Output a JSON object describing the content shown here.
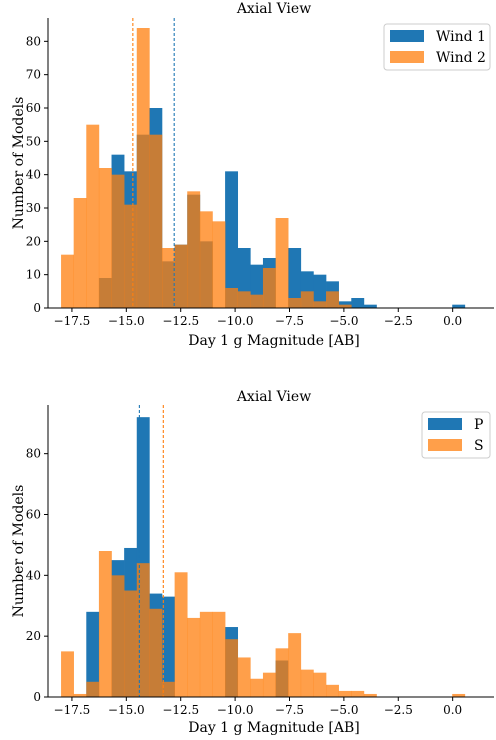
{
  "colors": {
    "series_a": "#1f77b4",
    "series_b": "#ff7f0e"
  },
  "chart_data": [
    {
      "type": "histogram",
      "title": "Axial View",
      "xlabel": "Day 1 g Magnitude [AB]",
      "ylabel": "Number of Models",
      "xlim": [
        -18.6,
        1.9
      ],
      "ylim": [
        0,
        87
      ],
      "xticks": [
        "−17.5",
        "−15.0",
        "−12.5",
        "−10.0",
        "−7.5",
        "−5.0",
        "−2.5",
        "0.0"
      ],
      "xtick_values": [
        -17.5,
        -15.0,
        -12.5,
        -10.0,
        -7.5,
        -5.0,
        -2.5,
        0.0
      ],
      "yticks": [
        "0",
        "10",
        "20",
        "30",
        "40",
        "50",
        "60",
        "70",
        "80"
      ],
      "ytick_values": [
        0,
        10,
        20,
        30,
        40,
        50,
        60,
        70,
        80
      ],
      "legend_position": "top-right",
      "bin_start": -18.0,
      "bin_width": 0.58,
      "series": [
        {
          "name": "Wind 1",
          "color": "#1f77b4",
          "opacity": 1.0,
          "mean": -12.8,
          "values": [
            0,
            0,
            0,
            9,
            46,
            41,
            52,
            60,
            14,
            19,
            34,
            20,
            0,
            41,
            18,
            13,
            15,
            0,
            18,
            11,
            10,
            8,
            2,
            3,
            1,
            0,
            0,
            0,
            0,
            0,
            0,
            1
          ]
        },
        {
          "name": "Wind 2",
          "color": "#ff7f0e",
          "opacity": 0.75,
          "mean": -14.7,
          "values": [
            16,
            33,
            55,
            42,
            40,
            31,
            84,
            52,
            18,
            19,
            35,
            29,
            26,
            6,
            5,
            4,
            12,
            27,
            3,
            5,
            2,
            5,
            1,
            0,
            0,
            0,
            0,
            0,
            0,
            0,
            0,
            0
          ]
        }
      ]
    },
    {
      "type": "histogram",
      "title": "Axial View",
      "xlabel": "Day 1 g Magnitude [AB]",
      "ylabel": "Number of Models",
      "xlim": [
        -18.6,
        1.9
      ],
      "ylim": [
        0,
        96
      ],
      "xticks": [
        "−17.5",
        "−15.0",
        "−12.5",
        "−10.0",
        "−7.5",
        "−5.0",
        "−2.5",
        "0.0"
      ],
      "xtick_values": [
        -17.5,
        -15.0,
        -12.5,
        -10.0,
        -7.5,
        -5.0,
        -2.5,
        0.0
      ],
      "yticks": [
        "0",
        "20",
        "40",
        "60",
        "80"
      ],
      "ytick_values": [
        0,
        20,
        40,
        60,
        80
      ],
      "legend_position": "top-right",
      "bin_start": -18.0,
      "bin_width": 0.58,
      "series": [
        {
          "name": "P",
          "color": "#1f77b4",
          "opacity": 1.0,
          "mean": -14.4,
          "values": [
            0,
            0,
            28,
            0,
            45,
            49,
            92,
            34,
            33,
            0,
            0,
            0,
            0,
            23,
            0,
            0,
            0,
            12,
            0,
            0,
            0,
            0,
            0,
            0,
            0,
            0,
            0,
            0,
            0,
            0,
            0,
            0
          ]
        },
        {
          "name": "S",
          "color": "#ff7f0e",
          "opacity": 0.75,
          "mean": -13.3,
          "values": [
            15,
            1,
            5,
            48,
            40,
            35,
            44,
            29,
            5,
            41,
            26,
            28,
            28,
            19,
            13,
            6,
            8,
            16,
            21,
            9,
            8,
            4,
            2,
            2,
            1,
            0,
            0,
            0,
            0,
            0,
            0,
            1
          ]
        }
      ]
    }
  ]
}
